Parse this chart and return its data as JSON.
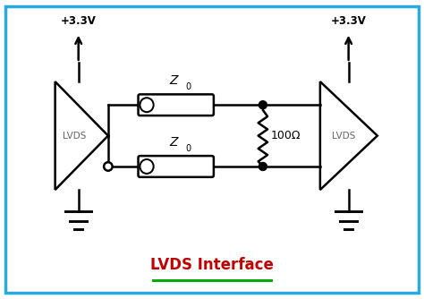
{
  "bg_color": "#ffffff",
  "border_color": "#29abe2",
  "border_linewidth": 2.5,
  "title_text": "LVDS Interface",
  "title_color": "#c00000",
  "title_fontsize": 12,
  "underline_color": "#00aa00",
  "vcc_label": "+3.3V",
  "lvds_label": "LVDS",
  "z0_label": "Z",
  "resistor_label": "100Ω",
  "line_color": "#000000",
  "line_width": 1.8,
  "triangle_fill": "#ffffff",
  "dot_color": "#000000",
  "xlim": [
    0,
    10
  ],
  "ylim": [
    0,
    7
  ]
}
